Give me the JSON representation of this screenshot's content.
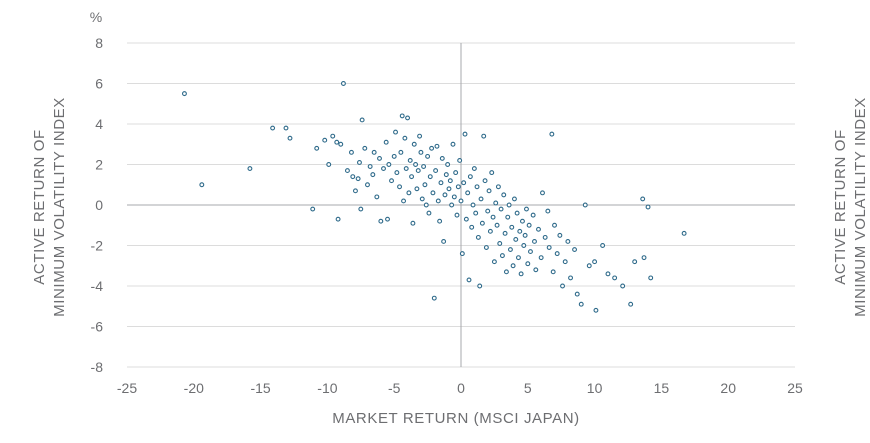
{
  "chart_data": {
    "type": "scatter",
    "unit_label": "%",
    "xlabel": "MARKET RETURN (MSCI JAPAN)",
    "ylabel_left": [
      "ACTIVE RETURN OF",
      "MINIMUM VOLATILITY INDEX"
    ],
    "ylabel_right": [
      "ACTIVE RETURN OF",
      "MINIMUM VOLATILITY INDEX"
    ],
    "xlim": [
      -25,
      25
    ],
    "ylim": [
      -8,
      8
    ],
    "x_ticks": [
      "-25",
      "-20",
      "-15",
      "-10",
      "-5",
      "0",
      "5",
      "10",
      "15",
      "20",
      "25"
    ],
    "y_ticks": [
      "8",
      "6",
      "4",
      "2",
      "0",
      "-2",
      "-4",
      "-6",
      "-8"
    ],
    "grid": "horizontal",
    "legend": "none",
    "colors": {
      "marker_edge": "#2e6a8a",
      "marker_fill": "#ffffff",
      "grid": "#dcdcdc",
      "zero_axis": "#a7a9ac",
      "text": "#6d6e71"
    },
    "points": [
      [
        -20.7,
        5.5
      ],
      [
        -19.4,
        1.0
      ],
      [
        -15.8,
        1.8
      ],
      [
        -14.1,
        3.8
      ],
      [
        -13.1,
        3.8
      ],
      [
        -12.8,
        3.3
      ],
      [
        -11.1,
        -0.2
      ],
      [
        -10.8,
        2.8
      ],
      [
        -10.2,
        3.2
      ],
      [
        -9.9,
        2.0
      ],
      [
        -9.6,
        3.4
      ],
      [
        -9.3,
        3.1
      ],
      [
        -9.2,
        -0.7
      ],
      [
        -9.0,
        3.0
      ],
      [
        -8.8,
        6.0
      ],
      [
        -8.5,
        1.7
      ],
      [
        -8.2,
        2.6
      ],
      [
        -8.1,
        1.4
      ],
      [
        -7.9,
        0.7
      ],
      [
        -7.7,
        1.3
      ],
      [
        -7.6,
        2.1
      ],
      [
        -7.5,
        -0.2
      ],
      [
        -7.4,
        4.2
      ],
      [
        -7.2,
        2.8
      ],
      [
        -7.0,
        1.0
      ],
      [
        -6.8,
        1.9
      ],
      [
        -6.6,
        1.5
      ],
      [
        -6.5,
        2.6
      ],
      [
        -6.3,
        0.4
      ],
      [
        -6.1,
        2.3
      ],
      [
        -6.0,
        -0.8
      ],
      [
        -5.8,
        1.8
      ],
      [
        -5.6,
        3.1
      ],
      [
        -5.5,
        -0.7
      ],
      [
        -5.4,
        2.0
      ],
      [
        -5.2,
        1.2
      ],
      [
        -5.0,
        2.4
      ],
      [
        -4.9,
        3.6
      ],
      [
        -4.8,
        1.6
      ],
      [
        -4.6,
        0.9
      ],
      [
        -4.5,
        2.6
      ],
      [
        -4.4,
        4.4
      ],
      [
        -4.3,
        0.2
      ],
      [
        -4.2,
        3.3
      ],
      [
        -4.1,
        1.8
      ],
      [
        -4.0,
        4.3
      ],
      [
        -3.9,
        0.6
      ],
      [
        -3.8,
        2.2
      ],
      [
        -3.7,
        1.4
      ],
      [
        -3.6,
        -0.9
      ],
      [
        -3.5,
        3.0
      ],
      [
        -3.4,
        2.0
      ],
      [
        -3.3,
        0.8
      ],
      [
        -3.2,
        1.7
      ],
      [
        -3.1,
        3.4
      ],
      [
        -3.0,
        2.6
      ],
      [
        -2.9,
        0.3
      ],
      [
        -2.8,
        1.9
      ],
      [
        -2.7,
        1.0
      ],
      [
        -2.6,
        0.0
      ],
      [
        -2.5,
        2.4
      ],
      [
        -2.4,
        -0.4
      ],
      [
        -2.3,
        1.4
      ],
      [
        -2.2,
        2.8
      ],
      [
        -2.1,
        0.6
      ],
      [
        -2.0,
        -4.6
      ],
      [
        -1.9,
        1.7
      ],
      [
        -1.8,
        2.9
      ],
      [
        -1.7,
        0.2
      ],
      [
        -1.6,
        -0.8
      ],
      [
        -1.5,
        1.1
      ],
      [
        -1.4,
        2.3
      ],
      [
        -1.3,
        -1.8
      ],
      [
        -1.2,
        0.5
      ],
      [
        -1.1,
        1.5
      ],
      [
        -1.0,
        2.0
      ],
      [
        -0.9,
        0.8
      ],
      [
        -0.8,
        1.2
      ],
      [
        -0.7,
        0.0
      ],
      [
        -0.6,
        3.0
      ],
      [
        -0.5,
        0.4
      ],
      [
        -0.4,
        1.6
      ],
      [
        -0.3,
        -0.5
      ],
      [
        -0.2,
        0.9
      ],
      [
        -0.1,
        2.2
      ],
      [
        0.0,
        0.2
      ],
      [
        0.1,
        -2.4
      ],
      [
        0.2,
        1.1
      ],
      [
        0.3,
        3.5
      ],
      [
        0.4,
        -0.7
      ],
      [
        0.5,
        0.6
      ],
      [
        0.6,
        -3.7
      ],
      [
        0.7,
        1.4
      ],
      [
        0.8,
        -1.1
      ],
      [
        0.9,
        0.0
      ],
      [
        1.0,
        1.8
      ],
      [
        1.1,
        -0.4
      ],
      [
        1.2,
        0.9
      ],
      [
        1.3,
        -1.6
      ],
      [
        1.4,
        -4.0
      ],
      [
        1.5,
        0.3
      ],
      [
        1.6,
        -0.9
      ],
      [
        1.7,
        3.4
      ],
      [
        1.8,
        1.2
      ],
      [
        1.9,
        -2.1
      ],
      [
        2.0,
        -0.3
      ],
      [
        2.1,
        0.7
      ],
      [
        2.2,
        -1.3
      ],
      [
        2.3,
        1.6
      ],
      [
        2.4,
        -0.6
      ],
      [
        2.5,
        -2.8
      ],
      [
        2.6,
        0.1
      ],
      [
        2.7,
        -1.0
      ],
      [
        2.8,
        0.9
      ],
      [
        2.9,
        -1.9
      ],
      [
        3.0,
        -0.2
      ],
      [
        3.1,
        -2.5
      ],
      [
        3.2,
        0.5
      ],
      [
        3.3,
        -1.4
      ],
      [
        3.4,
        -3.3
      ],
      [
        3.5,
        -0.6
      ],
      [
        3.6,
        0.0
      ],
      [
        3.7,
        -2.2
      ],
      [
        3.8,
        -1.1
      ],
      [
        3.9,
        -3.0
      ],
      [
        4.0,
        0.3
      ],
      [
        4.1,
        -1.7
      ],
      [
        4.2,
        -0.4
      ],
      [
        4.3,
        -2.6
      ],
      [
        4.4,
        -1.3
      ],
      [
        4.5,
        -3.4
      ],
      [
        4.6,
        -0.8
      ],
      [
        4.7,
        -2.0
      ],
      [
        4.8,
        -1.5
      ],
      [
        4.9,
        -0.2
      ],
      [
        5.0,
        -2.9
      ],
      [
        5.1,
        -1.0
      ],
      [
        5.2,
        -2.3
      ],
      [
        5.4,
        -0.5
      ],
      [
        5.5,
        -1.8
      ],
      [
        5.6,
        -3.2
      ],
      [
        5.8,
        -1.2
      ],
      [
        6.0,
        -2.6
      ],
      [
        6.1,
        0.6
      ],
      [
        6.3,
        -1.6
      ],
      [
        6.5,
        -0.3
      ],
      [
        6.6,
        -2.1
      ],
      [
        6.8,
        3.5
      ],
      [
        6.9,
        -3.3
      ],
      [
        7.0,
        -1.0
      ],
      [
        7.2,
        -2.4
      ],
      [
        7.4,
        -1.5
      ],
      [
        7.6,
        -4.0
      ],
      [
        7.8,
        -2.8
      ],
      [
        8.0,
        -1.8
      ],
      [
        8.2,
        -3.6
      ],
      [
        8.5,
        -2.2
      ],
      [
        8.7,
        -4.4
      ],
      [
        9.0,
        -4.9
      ],
      [
        9.3,
        0.0
      ],
      [
        9.6,
        -3.0
      ],
      [
        10.0,
        -2.8
      ],
      [
        10.1,
        -5.2
      ],
      [
        10.6,
        -2.0
      ],
      [
        11.0,
        -3.4
      ],
      [
        11.5,
        -3.6
      ],
      [
        12.1,
        -4.0
      ],
      [
        12.7,
        -4.9
      ],
      [
        13.0,
        -2.8
      ],
      [
        13.6,
        0.3
      ],
      [
        13.7,
        -2.6
      ],
      [
        14.0,
        -0.1
      ],
      [
        14.2,
        -3.6
      ],
      [
        16.7,
        -1.4
      ]
    ]
  }
}
